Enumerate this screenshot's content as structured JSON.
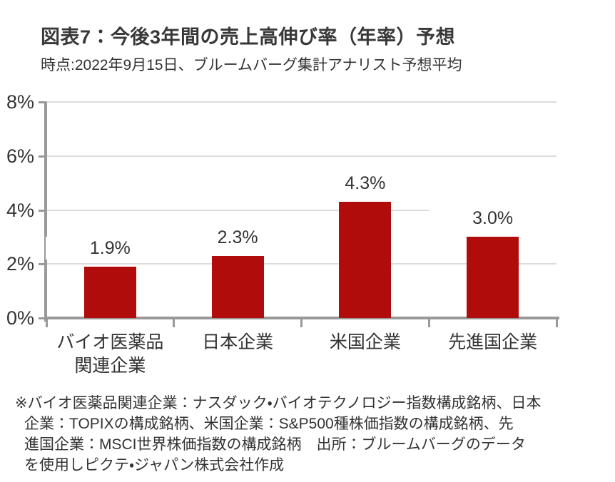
{
  "header": {
    "title": "図表7：今後3年間の売上高伸び率（年率）予想",
    "subtitle": "時点:2022年9月15日、ブルームバーグ集計アナリスト予想平均"
  },
  "chart_data": {
    "type": "bar",
    "title": "図表7：今後3年間の売上高伸び率（年率）予想",
    "subtitle": "時点:2022年9月15日、ブルームバーグ集計アナリスト予想平均",
    "categories": [
      "バイオ医薬品関連企業",
      "日本企業",
      "米国企業",
      "先進国企業"
    ],
    "category_label_lines": [
      [
        "バイオ医薬品",
        "関連企業"
      ],
      [
        "日本企業"
      ],
      [
        "米国企業"
      ],
      [
        "先進国企業"
      ]
    ],
    "values": [
      1.9,
      2.3,
      4.3,
      3.0
    ],
    "data_labels": [
      "1.9%",
      "2.3%",
      "4.3%",
      "3.0%"
    ],
    "xlabel": "",
    "ylabel": "",
    "ylim": [
      0,
      8
    ],
    "yticks": [
      0,
      2,
      4,
      6,
      8
    ],
    "ytick_labels": [
      "0%",
      "2%",
      "4%",
      "6%",
      "8%"
    ],
    "grid": true,
    "legend_position": "none",
    "colors": {
      "bar": "#B00C0C",
      "axis": "#999999",
      "gridline": "#DCDCDC",
      "text": "#333333",
      "title": "#383838",
      "background": "#FFFFFF"
    }
  },
  "footer": {
    "source_note_lines": [
      "※バイオ医薬品関連企業：ナスダック・バイオテクノロジー指数構成銘柄、日本",
      "企業：TOPIXの構成銘柄、米国企業：S&P500種株価指数の構成銘柄、先",
      "進国企業：MSCI世界株価指数の構成銘柄　出所：ブルームバーグのデータ",
      "を使用しピクテ・ジャパン株式会社作成"
    ]
  }
}
